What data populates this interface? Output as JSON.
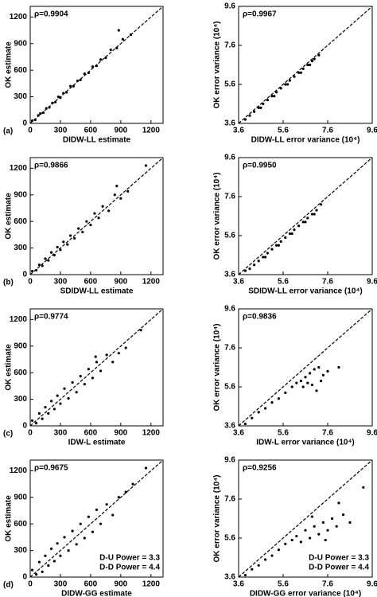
{
  "chart_data": [
    {
      "type": "scatter",
      "panel_label": "(a)",
      "annotation": "ρ=0.9904",
      "xlabel": "DIDW-LL estimate",
      "ylabel": "OK estimate",
      "xlim": [
        0,
        1320
      ],
      "ylim": [
        0,
        1320
      ],
      "xticks": [
        0,
        300,
        600,
        900,
        1200
      ],
      "yticks": [
        0,
        300,
        600,
        900,
        1200
      ],
      "diagonal": true,
      "color": "#000000",
      "x": [
        20,
        50,
        80,
        100,
        130,
        160,
        190,
        220,
        250,
        280,
        300,
        330,
        360,
        400,
        430,
        470,
        500,
        540,
        580,
        620,
        660,
        700,
        750,
        800,
        860,
        920,
        1000,
        880
      ],
      "y": [
        30,
        40,
        90,
        110,
        120,
        170,
        180,
        230,
        240,
        300,
        290,
        340,
        350,
        420,
        420,
        480,
        490,
        560,
        570,
        640,
        650,
        720,
        740,
        830,
        850,
        950,
        1000,
        1050
      ]
    },
    {
      "type": "scatter",
      "annotation": "ρ=0.9967",
      "xlabel": "DIDW-LL error variance (10⁴)",
      "ylabel": "OK error variance (10⁴)",
      "xlim": [
        3.6,
        9.6
      ],
      "ylim": [
        3.6,
        9.6
      ],
      "xticks": [
        3.6,
        5.6,
        7.6,
        9.6
      ],
      "yticks": [
        3.6,
        5.6,
        7.6,
        9.6
      ],
      "diagonal": true,
      "color": "#000000",
      "x": [
        3.9,
        4.1,
        4.3,
        4.5,
        4.7,
        4.9,
        5.1,
        5.3,
        5.5,
        5.7,
        5.9,
        6.1,
        6.3,
        6.5,
        6.7,
        6.9,
        7.0,
        7.2,
        4.6,
        5.2,
        5.8,
        6.4,
        6.8
      ],
      "y": [
        3.8,
        4.0,
        4.2,
        4.4,
        4.6,
        4.8,
        5.0,
        5.2,
        5.4,
        5.6,
        5.8,
        6.0,
        6.2,
        6.4,
        6.6,
        6.8,
        6.9,
        7.1,
        4.4,
        5.0,
        5.6,
        6.2,
        6.6
      ]
    },
    {
      "type": "scatter",
      "panel_label": "(b)",
      "annotation": "ρ=0.9866",
      "xlabel": "SDIDW-LL  estimate",
      "ylabel": "OK estimate",
      "xlim": [
        0,
        1320
      ],
      "ylim": [
        0,
        1320
      ],
      "xticks": [
        0,
        300,
        600,
        900,
        1200
      ],
      "yticks": [
        0,
        300,
        600,
        900,
        1200
      ],
      "diagonal": true,
      "color": "#000000",
      "x": [
        20,
        60,
        90,
        120,
        150,
        180,
        210,
        240,
        270,
        300,
        330,
        370,
        400,
        440,
        480,
        520,
        560,
        600,
        640,
        680,
        720,
        780,
        840,
        900,
        970,
        1150,
        860
      ],
      "y": [
        40,
        50,
        110,
        100,
        180,
        160,
        250,
        220,
        310,
        280,
        370,
        340,
        440,
        410,
        520,
        480,
        600,
        560,
        690,
        640,
        770,
        720,
        900,
        860,
        940,
        1230,
        1000
      ]
    },
    {
      "type": "scatter",
      "annotation": "ρ=0.9950",
      "xlabel": "SDIDW-LL error variance (10⁴)",
      "ylabel": "OK error variance (10⁴)",
      "xlim": [
        3.6,
        9.6
      ],
      "ylim": [
        3.6,
        9.6
      ],
      "xticks": [
        3.6,
        5.6,
        7.6,
        9.6
      ],
      "yticks": [
        3.6,
        5.6,
        7.6,
        9.6
      ],
      "diagonal": true,
      "color": "#000000",
      "x": [
        3.9,
        4.1,
        4.3,
        4.5,
        4.7,
        4.9,
        5.1,
        5.3,
        5.5,
        5.7,
        5.9,
        6.1,
        6.3,
        6.5,
        6.7,
        6.9,
        7.1,
        7.3,
        4.8,
        5.4,
        6.0,
        6.6,
        7.0
      ],
      "y": [
        3.8,
        3.9,
        4.1,
        4.3,
        4.5,
        4.7,
        4.9,
        5.1,
        5.3,
        5.5,
        5.7,
        5.9,
        6.1,
        6.3,
        6.5,
        6.7,
        6.9,
        7.2,
        4.5,
        5.1,
        5.7,
        6.3,
        6.7
      ]
    },
    {
      "type": "scatter",
      "panel_label": "(c)",
      "annotation": "ρ=0.9774",
      "xlabel": "IDW-L estimate",
      "ylabel": "OK estimate",
      "xlim": [
        0,
        1320
      ],
      "ylim": [
        0,
        1320
      ],
      "xticks": [
        0,
        300,
        600,
        900,
        1200
      ],
      "yticks": [
        0,
        300,
        600,
        900,
        1200
      ],
      "diagonal": true,
      "color": "#000000",
      "x": [
        20,
        60,
        90,
        120,
        150,
        180,
        210,
        240,
        270,
        300,
        340,
        380,
        420,
        460,
        500,
        540,
        580,
        620,
        660,
        700,
        760,
        820,
        880,
        950,
        1100,
        650
      ],
      "y": [
        60,
        30,
        140,
        80,
        210,
        140,
        280,
        190,
        340,
        250,
        420,
        310,
        490,
        380,
        560,
        470,
        640,
        540,
        720,
        620,
        800,
        720,
        820,
        880,
        1080,
        780
      ]
    },
    {
      "type": "scatter",
      "annotation": "ρ=0.9836",
      "xlabel": "IDW-L error variance (10⁴)",
      "ylabel": "OK error variance (10⁴)",
      "xlim": [
        3.6,
        9.6
      ],
      "ylim": [
        3.6,
        9.6
      ],
      "xticks": [
        3.6,
        5.6,
        7.6,
        9.6
      ],
      "yticks": [
        3.6,
        5.6,
        7.6,
        9.6
      ],
      "diagonal": true,
      "color": "#000000",
      "x": [
        3.9,
        4.2,
        4.5,
        4.8,
        5.1,
        5.4,
        5.7,
        6.0,
        6.2,
        6.4,
        6.6,
        6.8,
        7.0,
        7.2,
        7.4,
        6.5,
        6.9,
        7.3,
        7.6,
        7.1,
        6.7,
        8.1
      ],
      "y": [
        3.7,
        4.0,
        4.3,
        4.5,
        4.8,
        5.0,
        5.3,
        5.6,
        5.8,
        5.9,
        6.1,
        6.3,
        6.5,
        6.6,
        6.2,
        5.6,
        5.7,
        5.9,
        6.4,
        5.4,
        5.8,
        6.6
      ]
    },
    {
      "type": "scatter",
      "panel_label": "(d)",
      "annotation": "ρ=0.9675",
      "xlabel": "DIDW-GG estimate",
      "ylabel": "OK estimate",
      "notes": [
        "D-U Power = 3.3",
        "D-D Power = 4.4"
      ],
      "xlim": [
        0,
        1320
      ],
      "ylim": [
        0,
        1320
      ],
      "xticks": [
        0,
        300,
        600,
        900,
        1200
      ],
      "yticks": [
        0,
        300,
        600,
        900,
        1200
      ],
      "diagonal": true,
      "color": "#000000",
      "x": [
        20,
        60,
        90,
        120,
        150,
        180,
        210,
        240,
        270,
        300,
        340,
        380,
        420,
        460,
        500,
        540,
        580,
        620,
        660,
        700,
        760,
        820,
        880,
        950,
        1020,
        1150
      ],
      "y": [
        80,
        30,
        170,
        60,
        240,
        130,
        320,
        180,
        380,
        240,
        450,
        300,
        520,
        370,
        600,
        440,
        680,
        510,
        760,
        600,
        820,
        700,
        900,
        960,
        1050,
        1230
      ]
    },
    {
      "type": "scatter",
      "annotation": "ρ=0.9256",
      "xlabel": "DIDW-GG error variance (10⁴)",
      "ylabel": "OK error variance (10⁴)",
      "notes": [
        "D-U Power = 3.3",
        "D-D Power = 4.4"
      ],
      "xlim": [
        3.6,
        9.6
      ],
      "ylim": [
        3.6,
        9.6
      ],
      "xticks": [
        3.6,
        5.6,
        7.6,
        9.6
      ],
      "yticks": [
        3.6,
        5.6,
        7.6,
        9.6
      ],
      "diagonal": true,
      "color": "#000000",
      "x": [
        3.9,
        4.2,
        4.5,
        4.8,
        5.1,
        5.4,
        5.7,
        6.0,
        6.2,
        6.4,
        6.6,
        6.8,
        7.0,
        7.2,
        7.4,
        7.6,
        7.8,
        8.0,
        8.3,
        8.6,
        9.2,
        6.9,
        7.5,
        8.1
      ],
      "y": [
        3.7,
        4.0,
        4.2,
        4.5,
        4.7,
        5.0,
        5.3,
        5.5,
        5.7,
        5.4,
        6.0,
        5.6,
        6.2,
        5.8,
        6.4,
        6.0,
        6.6,
        6.2,
        6.8,
        6.4,
        8.2,
        6.7,
        5.5,
        7.4
      ]
    }
  ]
}
